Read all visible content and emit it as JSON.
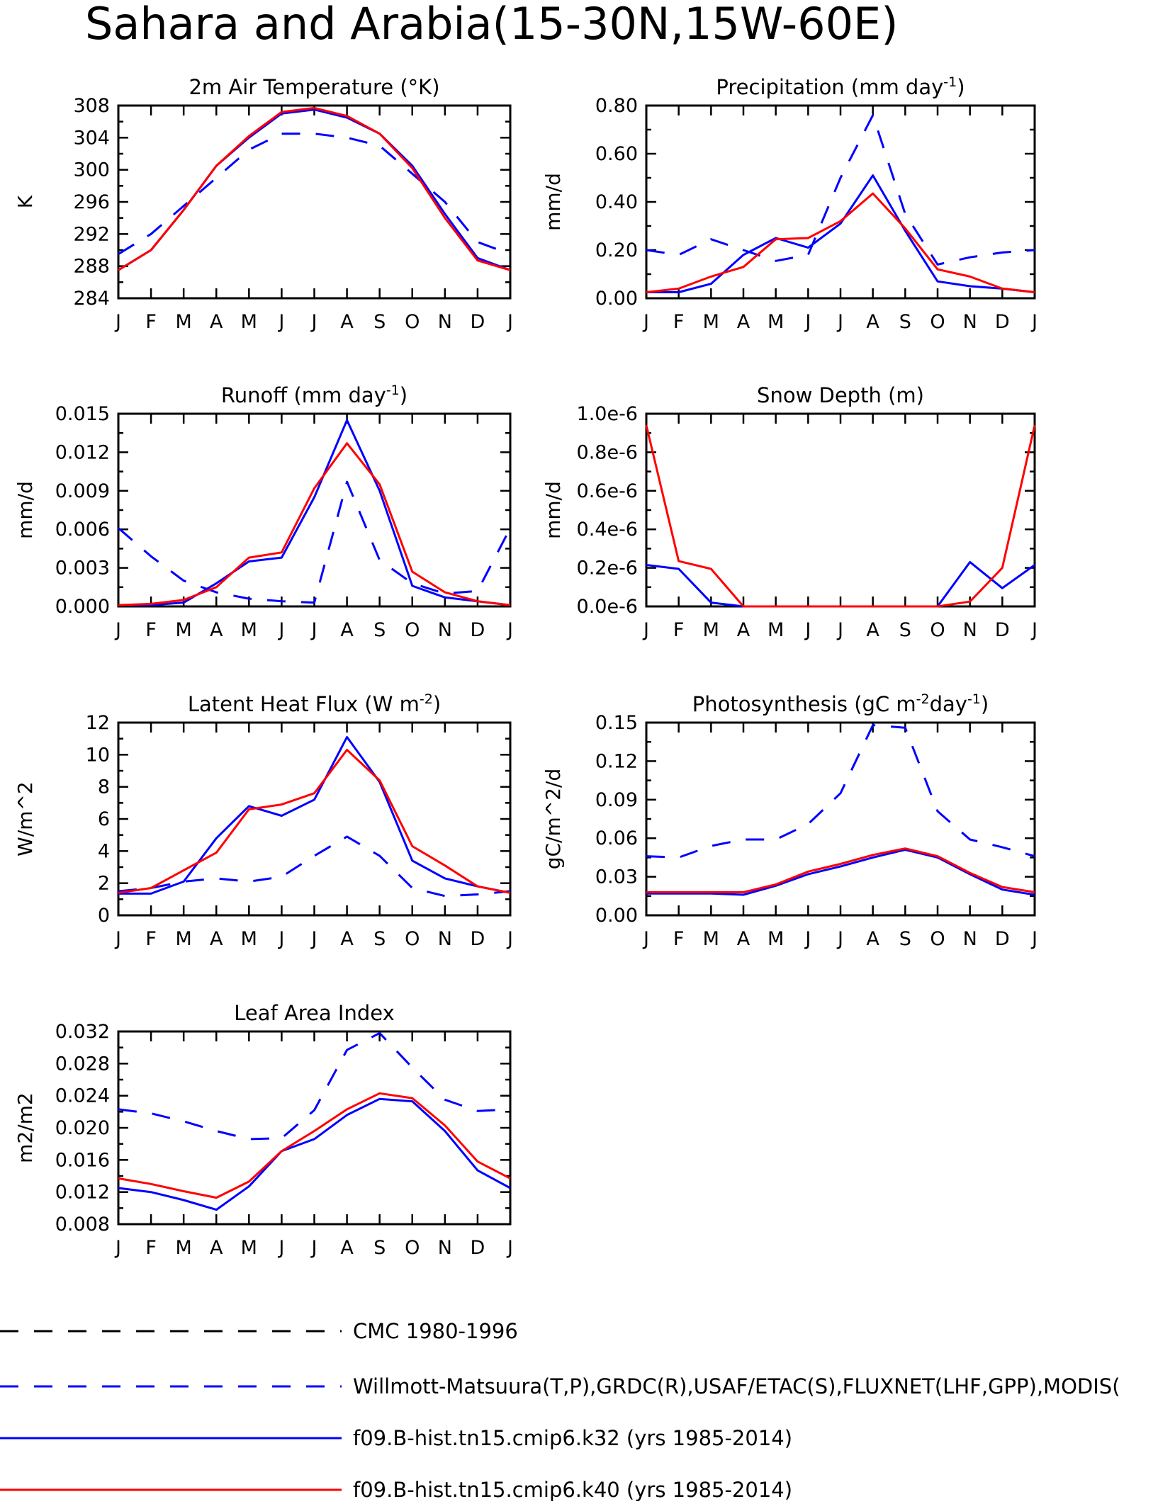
{
  "title": "Sahara and Arabia(15-30N,15W-60E)",
  "months": [
    "J",
    "F",
    "M",
    "A",
    "M",
    "J",
    "J",
    "A",
    "S",
    "O",
    "N",
    "D",
    "J"
  ],
  "legend": [
    {
      "label": "CMC 1980-1996",
      "color": "#000000",
      "dashed": true
    },
    {
      "label": "Willmott-Matsuura(T,P),GRDC(R),USAF/ETAC(S),FLUXNET(LHF,GPP),MODIS(",
      "color": "#0000ff",
      "dashed": true
    },
    {
      "label": "f09.B-hist.tn15.cmip6.k32 (yrs 1985-2014)",
      "color": "#0000ff",
      "dashed": false
    },
    {
      "label": "f09.B-hist.tn15.cmip6.k40 (yrs 1985-2014)",
      "color": "#ff0000",
      "dashed": false
    }
  ],
  "chart_data": [
    {
      "type": "line",
      "title": "2m Air Temperature (°K)",
      "ylabel": "K",
      "ylim": [
        284,
        308
      ],
      "yticks": [
        "284",
        "288",
        "292",
        "296",
        "300",
        "304",
        "308"
      ],
      "series": [
        {
          "legend": 1,
          "values": [
            289.5,
            292,
            295.5,
            299,
            302.5,
            304.5,
            304.5,
            304,
            303,
            299.5,
            296,
            291,
            289.5
          ]
        },
        {
          "legend": 2,
          "values": [
            287.5,
            290,
            295,
            300.5,
            304,
            307,
            307.5,
            306.5,
            304.5,
            300.5,
            294.5,
            289,
            287.5
          ]
        },
        {
          "legend": 3,
          "values": [
            287.5,
            290,
            295,
            300.5,
            304.2,
            307.2,
            307.7,
            306.7,
            304.5,
            300.2,
            294,
            288.7,
            287.5
          ]
        }
      ]
    },
    {
      "type": "line",
      "title": "Precipitation (mm day",
      "title_sup": "-1",
      "title_end": ")",
      "ylabel": "mm/d",
      "ylim": [
        0,
        0.8
      ],
      "yticks": [
        "0.00",
        "0.20",
        "0.40",
        "0.60",
        "0.80"
      ],
      "series": [
        {
          "legend": 1,
          "values": [
            0.2,
            0.18,
            0.245,
            0.2,
            0.155,
            0.18,
            0.5,
            0.76,
            0.35,
            0.14,
            0.17,
            0.19,
            0.2
          ]
        },
        {
          "legend": 2,
          "values": [
            0.025,
            0.025,
            0.06,
            0.18,
            0.25,
            0.21,
            0.31,
            0.51,
            0.28,
            0.07,
            0.05,
            0.04,
            0.025
          ]
        },
        {
          "legend": 3,
          "values": [
            0.025,
            0.04,
            0.09,
            0.13,
            0.245,
            0.25,
            0.32,
            0.435,
            0.29,
            0.12,
            0.09,
            0.04,
            0.025
          ]
        }
      ]
    },
    {
      "type": "line",
      "title": "Runoff (mm day",
      "title_sup": "-1",
      "title_end": ")",
      "ylabel": "mm/d",
      "ylim": [
        0,
        0.015
      ],
      "yticks": [
        "0.000",
        "0.003",
        "0.006",
        "0.009",
        "0.012",
        "0.015"
      ],
      "series": [
        {
          "legend": 1,
          "values": [
            0.0061,
            0.0039,
            0.002,
            0.0011,
            0.0006,
            0.0004,
            0.0003,
            0.0097,
            0.0036,
            0.0018,
            0.001,
            0.0012,
            0.0061
          ]
        },
        {
          "legend": 2,
          "values": [
            0.0001,
            0.0001,
            0.0003,
            0.0018,
            0.0035,
            0.0038,
            0.0085,
            0.0145,
            0.009,
            0.0016,
            0.0007,
            0.0004,
            0.0001
          ]
        },
        {
          "legend": 3,
          "values": [
            0.0001,
            0.0002,
            0.0005,
            0.0015,
            0.0038,
            0.0042,
            0.0092,
            0.0127,
            0.0095,
            0.0027,
            0.0011,
            0.0004,
            0.0001
          ]
        }
      ]
    },
    {
      "type": "line",
      "title": "Snow Depth (m)",
      "ylabel": "mm/d",
      "ylim": [
        0,
        1e-06
      ],
      "yticks": [
        "0.0e-6",
        "0.2e-6",
        "0.4e-6",
        "0.6e-6",
        "0.8e-6",
        "1.0e-6"
      ],
      "series": [
        {
          "legend": 0,
          "values": [
            0,
            0,
            0,
            0,
            0,
            0,
            0,
            0,
            0,
            0,
            0,
            0,
            0
          ]
        },
        {
          "legend": 2,
          "values": [
            2.15e-07,
            1.95e-07,
            2e-08,
            0,
            0,
            0,
            0,
            0,
            0,
            0,
            2.3e-07,
            9.5e-08,
            2.15e-07
          ]
        },
        {
          "legend": 3,
          "values": [
            9.4e-07,
            2.35e-07,
            1.95e-07,
            0,
            0,
            0,
            0,
            0,
            0,
            0,
            2.5e-08,
            2e-07,
            9.4e-07
          ]
        }
      ]
    },
    {
      "type": "line",
      "title": "Latent Heat Flux (W m",
      "title_sup": "-2",
      "title_end": ")",
      "ylabel": "W/m^2",
      "ylim": [
        0,
        12
      ],
      "yticks": [
        "0",
        "2",
        "4",
        "6",
        "8",
        "10",
        "12"
      ],
      "series": [
        {
          "legend": 1,
          "values": [
            1.5,
            1.7,
            2.1,
            2.3,
            2.1,
            2.4,
            3.7,
            4.9,
            3.7,
            1.7,
            1.2,
            1.3,
            1.5
          ]
        },
        {
          "legend": 2,
          "values": [
            1.35,
            1.35,
            2.1,
            4.8,
            6.8,
            6.2,
            7.2,
            11.1,
            8.3,
            3.4,
            2.3,
            1.8,
            1.4
          ]
        },
        {
          "legend": 3,
          "values": [
            1.4,
            1.7,
            2.8,
            3.9,
            6.6,
            6.9,
            7.6,
            10.3,
            8.4,
            4.3,
            3.1,
            1.8,
            1.4
          ]
        }
      ]
    },
    {
      "type": "line",
      "title": "Photosynthesis (gC m",
      "title_sup": "-2",
      "title_mid": "day",
      "title_sup2": "-1",
      "title_end": ")",
      "ylabel": "gC/m^2/d",
      "ylim": [
        0,
        0.15
      ],
      "yticks": [
        "0.00",
        "0.03",
        "0.06",
        "0.09",
        "0.12",
        "0.15"
      ],
      "series": [
        {
          "legend": 1,
          "values": [
            0.046,
            0.045,
            0.054,
            0.059,
            0.059,
            0.071,
            0.095,
            0.148,
            0.146,
            0.081,
            0.059,
            0.053,
            0.046
          ]
        },
        {
          "legend": 2,
          "values": [
            0.017,
            0.017,
            0.017,
            0.016,
            0.023,
            0.032,
            0.038,
            0.045,
            0.051,
            0.045,
            0.032,
            0.02,
            0.016
          ]
        },
        {
          "legend": 3,
          "values": [
            0.018,
            0.018,
            0.018,
            0.018,
            0.024,
            0.034,
            0.04,
            0.047,
            0.052,
            0.046,
            0.033,
            0.022,
            0.018
          ]
        }
      ]
    },
    {
      "type": "line",
      "title": "Leaf Area Index",
      "ylabel": "m2/m2",
      "ylim": [
        0.008,
        0.032
      ],
      "yticks": [
        "0.008",
        "0.012",
        "0.016",
        "0.020",
        "0.024",
        "0.028",
        "0.032"
      ],
      "series": [
        {
          "legend": 1,
          "values": [
            0.0223,
            0.0218,
            0.0208,
            0.0196,
            0.0186,
            0.0187,
            0.0222,
            0.0297,
            0.0318,
            0.0275,
            0.0235,
            0.0221,
            0.0223
          ]
        },
        {
          "legend": 2,
          "values": [
            0.0125,
            0.012,
            0.011,
            0.0098,
            0.0127,
            0.0171,
            0.0186,
            0.0216,
            0.0236,
            0.0233,
            0.0196,
            0.0147,
            0.0125
          ]
        },
        {
          "legend": 3,
          "values": [
            0.0137,
            0.013,
            0.0121,
            0.0113,
            0.0133,
            0.0171,
            0.0196,
            0.0223,
            0.0243,
            0.0237,
            0.0203,
            0.0158,
            0.0137
          ]
        }
      ]
    }
  ]
}
